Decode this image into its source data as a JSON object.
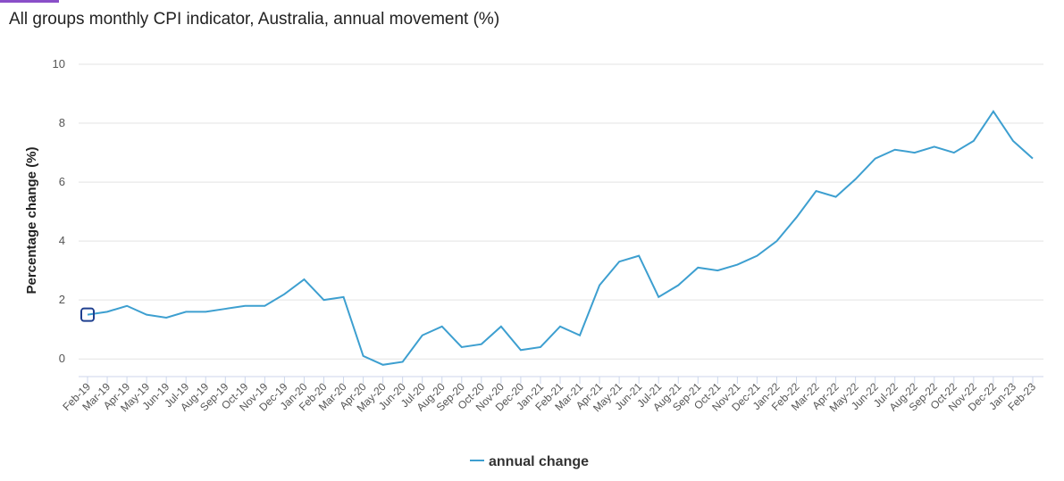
{
  "chart_data": {
    "type": "line",
    "title": "All groups monthly CPI indicator, Australia, annual movement (%)",
    "y_label": "Percentage change (%)",
    "categories": [
      "Feb-19",
      "Mar-19",
      "Apr-19",
      "May-19",
      "Jun-19",
      "Jul-19",
      "Aug-19",
      "Sep-19",
      "Oct-19",
      "Nov-19",
      "Dec-19",
      "Jan-20",
      "Feb-20",
      "Mar-20",
      "Apr-20",
      "May-20",
      "Jun-20",
      "Jul-20",
      "Aug-20",
      "Sep-20",
      "Oct-20",
      "Nov-20",
      "Dec-20",
      "Jan-21",
      "Feb-21",
      "Mar-21",
      "Apr-21",
      "May-21",
      "Jun-21",
      "Jul-21",
      "Aug-21",
      "Sep-21",
      "Oct-21",
      "Nov-21",
      "Dec-21",
      "Jan-22",
      "Feb-22",
      "Mar-22",
      "Apr-22",
      "May-22",
      "Jun-22",
      "Jul-22",
      "Aug-22",
      "Sep-22",
      "Oct-22",
      "Nov-22",
      "Dec-22",
      "Jan-23",
      "Feb-23"
    ],
    "series": [
      {
        "name": "annual change",
        "color": "#3d9fd0",
        "values": [
          1.5,
          1.6,
          1.8,
          1.5,
          1.4,
          1.6,
          1.6,
          1.7,
          1.8,
          1.8,
          2.2,
          2.7,
          2.0,
          2.1,
          0.1,
          -0.2,
          -0.1,
          0.8,
          1.1,
          0.4,
          0.5,
          1.1,
          0.3,
          0.4,
          1.1,
          0.8,
          2.5,
          3.3,
          3.5,
          2.1,
          2.5,
          3.1,
          3.0,
          3.2,
          3.5,
          4.0,
          4.8,
          5.7,
          5.5,
          6.1,
          6.8,
          7.1,
          7.0,
          7.2,
          7.0,
          7.4,
          8.4,
          7.4,
          6.8
        ]
      }
    ],
    "ylim": [
      -0.6,
      10
    ],
    "yticks": [
      0,
      2,
      4,
      6,
      8,
      10
    ],
    "grid": true,
    "legend": "bottom"
  }
}
